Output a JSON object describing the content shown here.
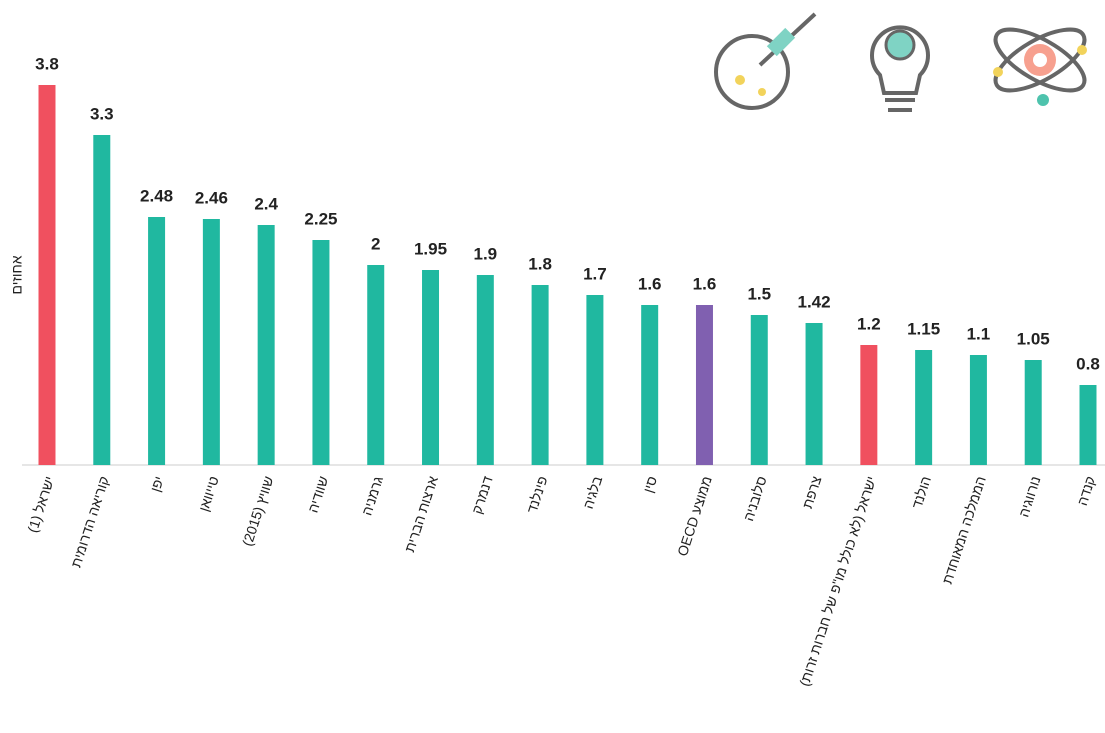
{
  "chart_data": {
    "type": "bar",
    "y_label": "אחוזים",
    "categories": [
      "ישראל (1)",
      "קוריאה הדרומית",
      "יפן",
      "טייוואן",
      "שוויץ (2015)",
      "שוודיה",
      "גרמניה",
      "ארצות הברית",
      "דנמרק",
      "פינלנד",
      "בלגיה",
      "סין",
      "ממוצע OECD",
      "סלובניה",
      "צרפת",
      "ישראל (לא כולל מו\"פ של חברות זרות)",
      "הולנד",
      "הממלכה המאוחדת",
      "נורווגיה",
      "קנדה"
    ],
    "values": [
      3.8,
      3.3,
      2.48,
      2.46,
      2.4,
      2.25,
      2,
      1.95,
      1.9,
      1.8,
      1.7,
      1.6,
      1.6,
      1.5,
      1.42,
      1.2,
      1.15,
      1.1,
      1.05,
      0.8
    ],
    "colors": [
      "#f0505f",
      "#20b8a0",
      "#20b8a0",
      "#20b8a0",
      "#20b8a0",
      "#20b8a0",
      "#20b8a0",
      "#20b8a0",
      "#20b8a0",
      "#20b8a0",
      "#20b8a0",
      "#20b8a0",
      "#8060b0",
      "#20b8a0",
      "#20b8a0",
      "#f0505f",
      "#20b8a0",
      "#20b8a0",
      "#20b8a0",
      "#20b8a0"
    ],
    "ylim": [
      0,
      3.8
    ]
  }
}
